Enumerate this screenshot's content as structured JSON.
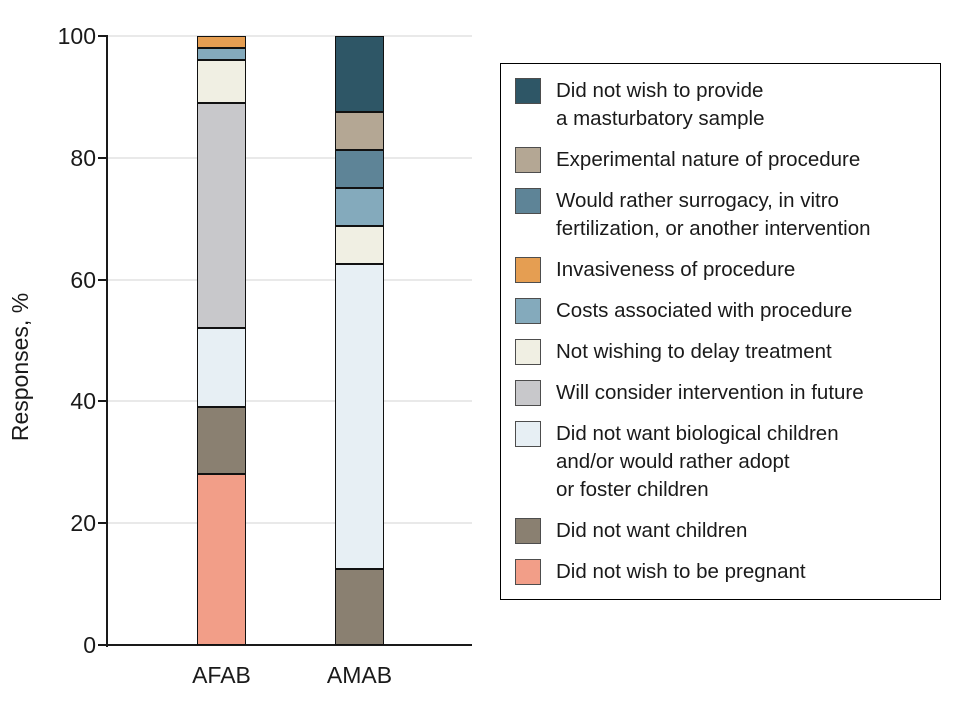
{
  "figure": {
    "background": "#ffffff",
    "axis_color": "#1a1a1a",
    "gridline_color": "#e9e9e9",
    "text_color": "#1a1a1a"
  },
  "chart_data": {
    "type": "bar",
    "stacked": true,
    "orientation": "vertical",
    "title": "",
    "xlabel": "",
    "ylabel": "Responses, %",
    "ylim": [
      0,
      100
    ],
    "yticks": [
      0,
      20,
      40,
      60,
      80,
      100
    ],
    "grid": true,
    "legend_position": "right",
    "categories": [
      "AFAB",
      "AMAB"
    ],
    "series": [
      {
        "name": "Did not wish to be pregnant",
        "color": "#f29e88",
        "values": [
          28,
          0
        ]
      },
      {
        "name": "Did not want children",
        "color": "#8a8071",
        "values": [
          11,
          12.5
        ]
      },
      {
        "name": "Did not want biological children and/or would rather adopt or foster children",
        "color": "#e7eff4",
        "values": [
          13,
          50
        ]
      },
      {
        "name": "Will consider intervention in future",
        "color": "#c8c8cb",
        "values": [
          37,
          0
        ]
      },
      {
        "name": "Not wishing to delay treatment",
        "color": "#f0efe3",
        "values": [
          7,
          6.25
        ]
      },
      {
        "name": "Costs associated with procedure",
        "color": "#84aabc",
        "values": [
          2,
          6.25
        ]
      },
      {
        "name": "Invasiveness of procedure",
        "color": "#e59e52",
        "values": [
          2,
          0
        ]
      },
      {
        "name": "Would rather surrogacy, in vitro fertilization, or another intervention",
        "color": "#5e8497",
        "values": [
          0,
          6.25
        ]
      },
      {
        "name": "Experimental nature of procedure",
        "color": "#b4a794",
        "values": [
          0,
          6.25
        ]
      },
      {
        "name": "Did not wish to provide a masturbatory sample",
        "color": "#2e5666",
        "values": [
          0,
          12.5
        ]
      }
    ]
  },
  "legend": {
    "items": [
      {
        "color": "#2e5666",
        "label": "Did not wish to provide\na masturbatory sample"
      },
      {
        "color": "#b4a794",
        "label": "Experimental nature of procedure"
      },
      {
        "color": "#5e8497",
        "label": "Would rather surrogacy, in vitro\nfertilization, or another intervention"
      },
      {
        "color": "#e59e52",
        "label": "Invasiveness of procedure"
      },
      {
        "color": "#84aabc",
        "label": "Costs associated with procedure"
      },
      {
        "color": "#f0efe3",
        "label": "Not wishing to delay treatment"
      },
      {
        "color": "#c8c8cb",
        "label": "Will consider intervention in future"
      },
      {
        "color": "#e7eff4",
        "label": "Did not want biological children\nand/or would rather adopt\nor foster children"
      },
      {
        "color": "#8a8071",
        "label": "Did not want children"
      },
      {
        "color": "#f29e88",
        "label": "Did not wish to be pregnant"
      }
    ]
  }
}
